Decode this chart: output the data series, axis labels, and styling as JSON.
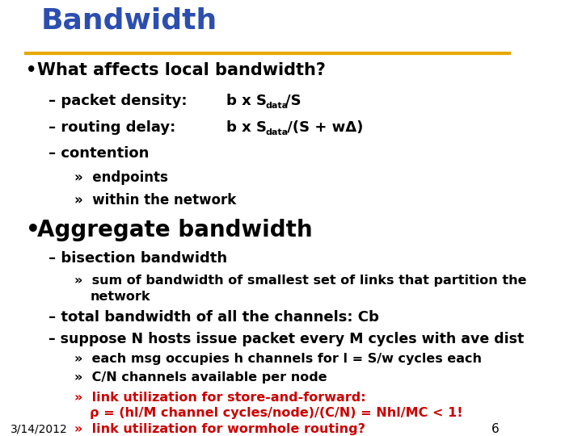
{
  "title": "Bandwidth",
  "title_color": "#2B4EAF",
  "line_color": "#E6A800",
  "background_color": "#FFFFFF",
  "slide_number": "6",
  "date": "3/14/2012"
}
